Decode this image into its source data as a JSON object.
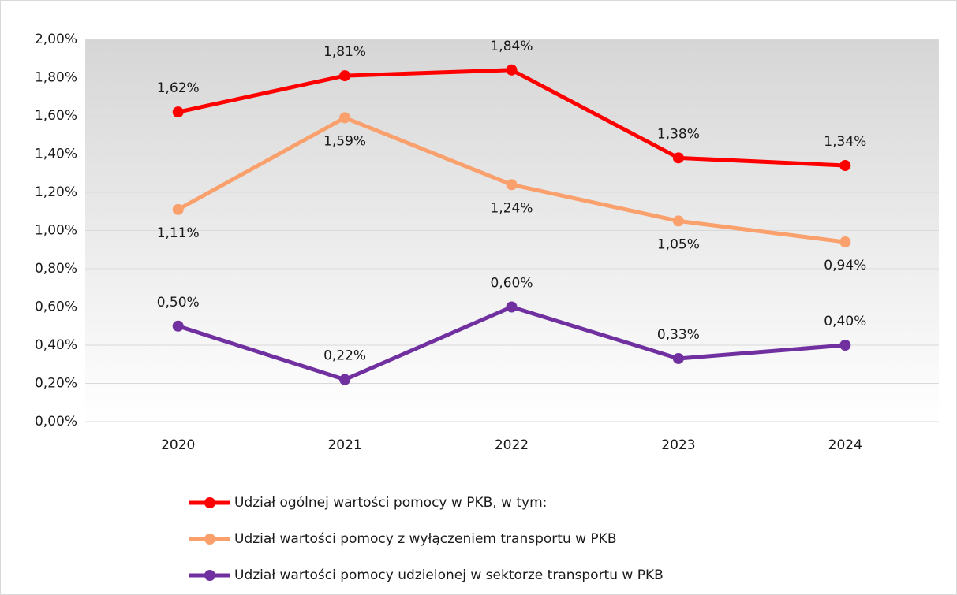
{
  "chart_data": {
    "type": "line",
    "categories": [
      "2020",
      "2021",
      "2022",
      "2023",
      "2024"
    ],
    "series": [
      {
        "name": "Udział ogólnej wartości pomocy w PKB, w tym:",
        "color": "#ff0000",
        "values": [
          1.62,
          1.81,
          1.84,
          1.38,
          1.34
        ],
        "value_labels": [
          "1,62%",
          "1,81%",
          "1,84%",
          "1,38%",
          "1,34%"
        ]
      },
      {
        "name": "Udział wartości pomocy z wyłączeniem transportu w PKB",
        "color": "#f9a06c",
        "values": [
          1.11,
          1.59,
          1.24,
          1.05,
          0.94
        ],
        "value_labels": [
          "1,11%",
          "1,59%",
          "1,24%",
          "1,05%",
          "0,94%"
        ]
      },
      {
        "name": "Udział wartości pomocy udzielonej w sektorze transportu w PKB",
        "color": "#7030a0",
        "values": [
          0.5,
          0.22,
          0.6,
          0.33,
          0.4
        ],
        "value_labels": [
          "0,50%",
          "0,22%",
          "0,60%",
          "0,33%",
          "0,40%"
        ]
      }
    ],
    "ylim": [
      0,
      2
    ],
    "yticks": [
      {
        "value": 0,
        "label": "0,00%"
      },
      {
        "value": 0.2,
        "label": "0,20%"
      },
      {
        "value": 0.4,
        "label": "0,40%"
      },
      {
        "value": 0.6,
        "label": "0,60%"
      },
      {
        "value": 0.8,
        "label": "0,80%"
      },
      {
        "value": 1,
        "label": "1,00%"
      },
      {
        "value": 1.2,
        "label": "1,20%"
      },
      {
        "value": 1.4,
        "label": "1,40%"
      },
      {
        "value": 1.6,
        "label": "1,60%"
      },
      {
        "value": 1.8,
        "label": "1,80%"
      },
      {
        "value": 2,
        "label": "2,00%"
      }
    ],
    "grid": true,
    "legend": "bottom"
  }
}
